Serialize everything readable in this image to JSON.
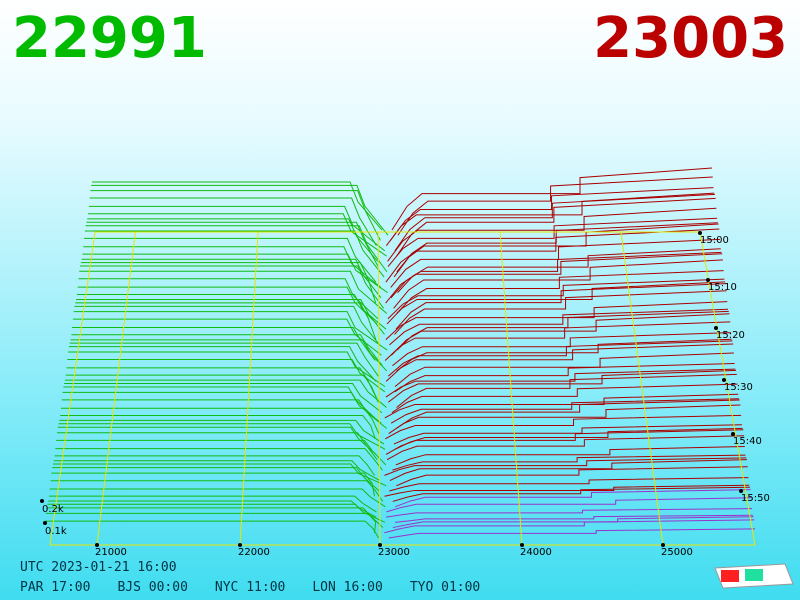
{
  "header": {
    "bid": "22991",
    "ask": "23003"
  },
  "axis": {
    "price_labels": [
      "21000",
      "22000",
      "23000",
      "24000",
      "25000"
    ],
    "time_labels": [
      "15:00",
      "15:10",
      "15:20",
      "15:30",
      "15:40",
      "15:50"
    ],
    "depth_labels": [
      "0.2k",
      "0.1k"
    ]
  },
  "footer": {
    "utc": "UTC 2023-01-21 16:00",
    "clocks": [
      "PAR 17:00",
      "BJS 00:00",
      "NYC 11:00",
      "LON 16:00",
      "TYO 01:00"
    ]
  }
}
